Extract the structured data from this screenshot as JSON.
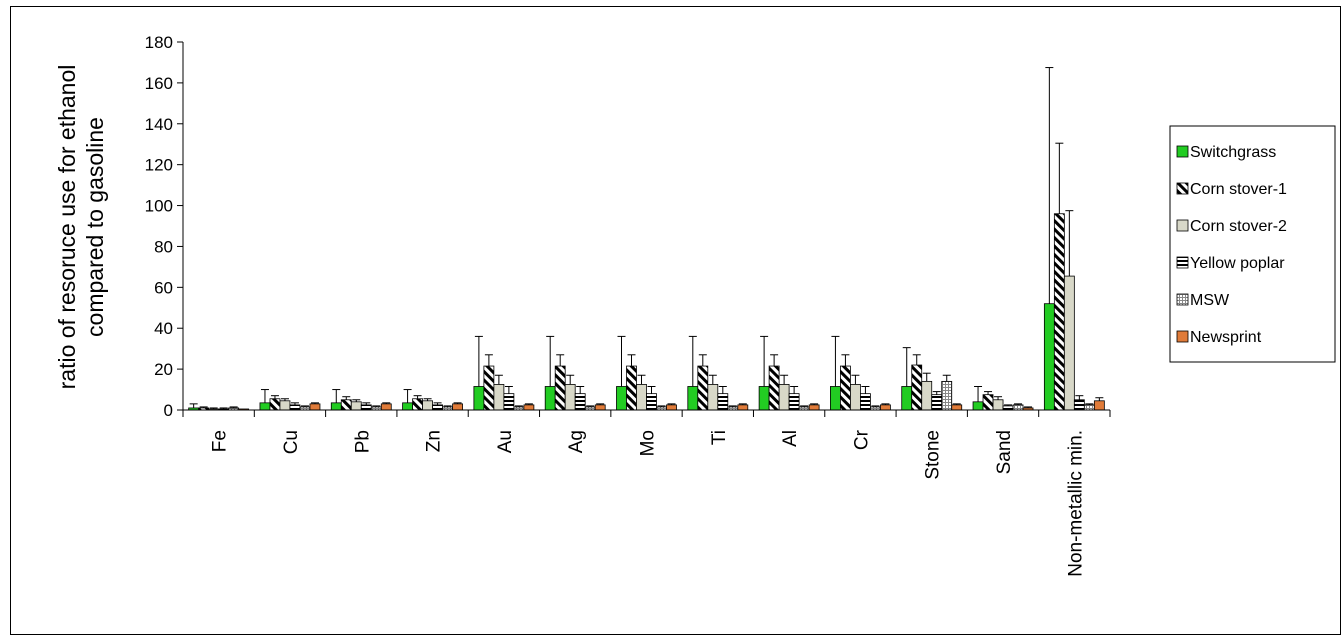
{
  "chart_data": {
    "type": "bar",
    "ylabel_lines": [
      "ratio of resoruce use for ethanol",
      "compared to gasoline"
    ],
    "xlabel": "",
    "ylim": [
      0,
      180
    ],
    "yticks": [
      0,
      20,
      40,
      60,
      80,
      100,
      120,
      140,
      160,
      180
    ],
    "grid": false,
    "legend_position": "right",
    "categories": [
      "Fe",
      "Cu",
      "Pb",
      "Zn",
      "Au",
      "Ag",
      "Mo",
      "Ti",
      "Al",
      "Cr",
      "Stone",
      "Sand",
      "Non-metallic min."
    ],
    "series": [
      {
        "name": "Switchgrass",
        "color": "#22cc22",
        "pattern": "solid",
        "values": [
          1,
          3.5,
          3.5,
          3.5,
          11.5,
          11.5,
          11.5,
          11.5,
          11.5,
          11.5,
          11.5,
          4,
          52
        ],
        "error_high": [
          3,
          10,
          10,
          10,
          36,
          36,
          36,
          36,
          36,
          36,
          30.5,
          11.5,
          167.5
        ]
      },
      {
        "name": "Corn stover-1",
        "color": "#000000",
        "pattern": "diagonal",
        "values": [
          1,
          5.5,
          5,
          5.5,
          21.5,
          21.5,
          21.5,
          21.5,
          21.5,
          21.5,
          22,
          7.5,
          96
        ],
        "error_high": [
          1.5,
          7,
          6.5,
          7,
          27,
          27,
          27,
          27,
          27,
          27,
          27,
          9,
          130.5
        ]
      },
      {
        "name": "Corn stover-2",
        "color": "#d8d8c8",
        "pattern": "solid",
        "values": [
          0.5,
          4.5,
          4,
          4.5,
          12.5,
          12.5,
          12.5,
          12.5,
          12.5,
          12.5,
          14,
          5,
          65.5
        ],
        "error_high": [
          1,
          5.5,
          5,
          5.5,
          17,
          17,
          17,
          17,
          17,
          17,
          18,
          6.5,
          97.5
        ]
      },
      {
        "name": "Yellow poplar",
        "color": "#000000",
        "pattern": "horizontal",
        "values": [
          0.5,
          2.5,
          2.5,
          2.5,
          8,
          8,
          8,
          8,
          8,
          8,
          7.5,
          2,
          5
        ],
        "error_high": [
          1,
          3.5,
          3.5,
          3.5,
          11.5,
          11.5,
          11.5,
          11.5,
          11.5,
          11.5,
          9,
          2.5,
          7
        ]
      },
      {
        "name": "MSW",
        "color": "#888888",
        "pattern": "grid",
        "values": [
          1,
          1.5,
          1.5,
          1.5,
          1.5,
          1.5,
          1.5,
          1.5,
          1.5,
          1.5,
          14,
          2.5,
          2.5
        ],
        "error_high": [
          1.5,
          2,
          2,
          2,
          2,
          2,
          2,
          2,
          2,
          2,
          17,
          3,
          3
        ]
      },
      {
        "name": "Newsprint",
        "color": "#e07b39",
        "pattern": "solid",
        "values": [
          0.5,
          3,
          3,
          3,
          2.5,
          2.5,
          2.5,
          2.5,
          2.5,
          2.5,
          2.5,
          1,
          4.5
        ],
        "error_high": [
          0.5,
          3.5,
          3.5,
          3.5,
          3,
          3,
          3,
          3,
          3,
          3,
          3,
          1.5,
          6
        ]
      }
    ]
  }
}
